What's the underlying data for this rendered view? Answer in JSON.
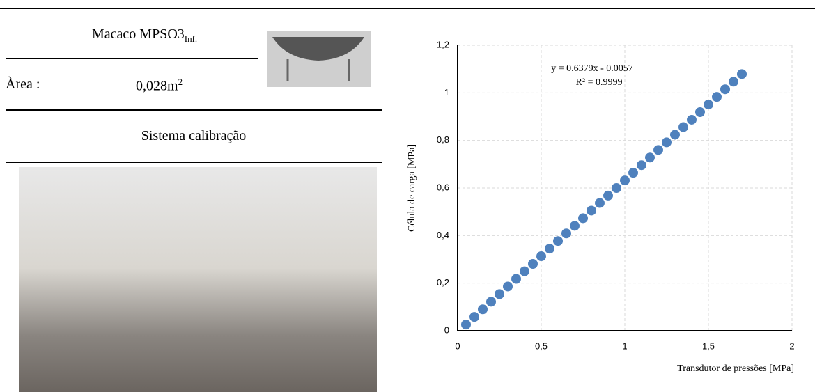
{
  "header": {
    "jack_name": "Macaco MPSO3",
    "jack_subscript": "Inf.",
    "area_label": "Àrea :",
    "area_value": "0,028m",
    "area_exponent": "2",
    "section_title": "Sistema calibração"
  },
  "chart_data": {
    "type": "scatter",
    "x_label": "Transdutor de pressões [MPa]",
    "y_label": "Célula de carga [MPa]",
    "trendline_equation": "y = 0.6379x - 0.0057",
    "r_squared": "R² = 0.9999",
    "x": [
      0.05,
      0.1,
      0.15,
      0.2,
      0.25,
      0.3,
      0.35,
      0.4,
      0.45,
      0.5,
      0.55,
      0.6,
      0.65,
      0.7,
      0.75,
      0.8,
      0.85,
      0.9,
      0.95,
      1.0,
      1.05,
      1.1,
      1.15,
      1.2,
      1.25,
      1.3,
      1.35,
      1.4,
      1.45,
      1.5,
      1.55,
      1.6,
      1.65,
      1.7
    ],
    "series": [
      {
        "color": "#4f81bd",
        "values": [
          0.026,
          0.058,
          0.09,
          0.122,
          0.154,
          0.186,
          0.218,
          0.25,
          0.281,
          0.313,
          0.345,
          0.377,
          0.409,
          0.441,
          0.473,
          0.505,
          0.537,
          0.568,
          0.6,
          0.632,
          0.664,
          0.696,
          0.728,
          0.76,
          0.792,
          0.824,
          0.856,
          0.887,
          0.919,
          0.951,
          0.983,
          1.015,
          1.047,
          1.079
        ]
      }
    ],
    "xlim": [
      0,
      2
    ],
    "ylim": [
      0,
      1.2
    ],
    "xticks": [
      0,
      {
        "value": 0.5,
        "label": "0,5"
      },
      1,
      {
        "value": 1.5,
        "label": "1,5"
      },
      2
    ],
    "yticks": [
      0,
      {
        "value": 0.2,
        "label": "0,2"
      },
      {
        "value": 0.4,
        "label": "0,4"
      },
      {
        "value": 0.6,
        "label": "0,6"
      },
      {
        "value": 0.8,
        "label": "0,8"
      },
      1,
      {
        "value": 1.2,
        "label": "1,2"
      }
    ],
    "grid": true
  }
}
